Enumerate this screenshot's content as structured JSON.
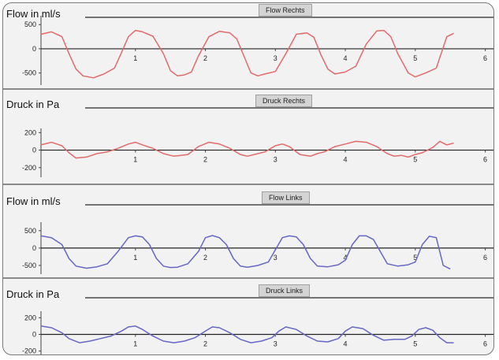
{
  "chart_data": [
    {
      "type": "line",
      "title": "Flow Rechts",
      "ylabel": "Flow in ml/s",
      "x_ticks": [
        "1",
        "2",
        "3",
        "4",
        "5",
        "6"
      ],
      "y_ticks": [
        "500",
        "0",
        "-500"
      ],
      "xlim": [
        -0.35,
        6.05
      ],
      "ylim": [
        -750,
        650
      ],
      "color": "#e26a6a",
      "series": [
        {
          "x": [
            -0.35,
            -0.2,
            -0.05,
            0.05,
            0.15,
            0.25,
            0.4,
            0.55,
            0.7,
            0.8,
            0.9,
            1.0,
            1.1,
            1.25,
            1.4,
            1.5,
            1.6,
            1.7,
            1.8,
            1.9,
            2.05,
            2.2,
            2.35,
            2.45,
            2.55,
            2.65,
            2.75,
            2.85,
            3.0,
            3.15,
            3.3,
            3.45,
            3.55,
            3.65,
            3.75,
            3.85,
            4.0,
            4.15,
            4.3,
            4.45,
            4.55,
            4.65,
            4.75,
            4.9,
            5.0,
            5.15,
            5.3,
            5.45,
            5.55
          ],
          "y": [
            300,
            350,
            250,
            -100,
            -420,
            -560,
            -600,
            -520,
            -400,
            -80,
            250,
            380,
            350,
            260,
            -100,
            -450,
            -560,
            -540,
            -480,
            -150,
            250,
            360,
            330,
            200,
            -150,
            -500,
            -560,
            -520,
            -470,
            -100,
            300,
            330,
            240,
            -120,
            -420,
            -520,
            -480,
            -360,
            100,
            370,
            380,
            250,
            -100,
            -500,
            -580,
            -500,
            -400,
            250,
            320
          ]
        }
      ]
    },
    {
      "type": "line",
      "title": "Druck Rechts",
      "ylabel": "Druck in Pa",
      "x_ticks": [
        "1",
        "2",
        "3",
        "4",
        "5",
        "6"
      ],
      "y_ticks": [
        "200",
        "0",
        "-200"
      ],
      "xlim": [
        -0.35,
        6.05
      ],
      "ylim": [
        -310,
        230
      ],
      "color": "#e26a6a",
      "series": [
        {
          "x": [
            -0.35,
            -0.2,
            -0.05,
            0.05,
            0.15,
            0.3,
            0.45,
            0.6,
            0.75,
            0.9,
            1.0,
            1.1,
            1.25,
            1.4,
            1.55,
            1.65,
            1.75,
            1.9,
            2.05,
            2.2,
            2.35,
            2.5,
            2.6,
            2.7,
            2.85,
            3.0,
            3.1,
            3.2,
            3.35,
            3.5,
            3.6,
            3.7,
            3.85,
            4.0,
            4.15,
            4.3,
            4.45,
            4.6,
            4.7,
            4.8,
            4.9,
            5.0,
            5.1,
            5.25,
            5.35,
            5.45,
            5.55
          ],
          "y": [
            60,
            90,
            50,
            -30,
            -90,
            -80,
            -40,
            -20,
            20,
            70,
            90,
            60,
            20,
            -40,
            -70,
            -60,
            -50,
            40,
            90,
            70,
            20,
            -50,
            -70,
            -50,
            -20,
            50,
            70,
            40,
            -50,
            -70,
            -40,
            -20,
            40,
            70,
            100,
            90,
            40,
            -40,
            -70,
            -60,
            -80,
            -50,
            -30,
            30,
            100,
            60,
            80
          ]
        }
      ]
    },
    {
      "type": "line",
      "title": "Flow Links",
      "ylabel": "Flow in ml/s",
      "x_ticks": [
        "1",
        "2",
        "3",
        "4",
        "5",
        "6"
      ],
      "y_ticks": [
        "500",
        "0",
        "-500"
      ],
      "xlim": [
        -0.35,
        6.05
      ],
      "ylim": [
        -750,
        700
      ],
      "color": "#6666c6",
      "series": [
        {
          "x": [
            -0.35,
            -0.2,
            -0.05,
            0.05,
            0.15,
            0.3,
            0.45,
            0.6,
            0.75,
            0.9,
            1.0,
            1.1,
            1.2,
            1.3,
            1.4,
            1.5,
            1.6,
            1.75,
            1.9,
            2.0,
            2.1,
            2.2,
            2.3,
            2.4,
            2.5,
            2.6,
            2.75,
            2.9,
            3.0,
            3.1,
            3.2,
            3.3,
            3.4,
            3.5,
            3.6,
            3.75,
            3.9,
            4.0,
            4.1,
            4.2,
            4.3,
            4.4,
            4.5,
            4.6,
            4.75,
            4.9,
            5.0,
            5.1,
            5.2,
            5.3,
            5.4,
            5.5
          ],
          "y": [
            350,
            300,
            100,
            -300,
            -520,
            -580,
            -540,
            -450,
            -100,
            300,
            350,
            320,
            100,
            -300,
            -520,
            -560,
            -550,
            -450,
            -100,
            300,
            360,
            300,
            100,
            -300,
            -520,
            -550,
            -500,
            -400,
            -50,
            300,
            350,
            320,
            100,
            -300,
            -520,
            -540,
            -480,
            -350,
            100,
            350,
            350,
            250,
            -100,
            -450,
            -520,
            -480,
            -400,
            100,
            340,
            300,
            -500,
            -600
          ]
        }
      ]
    },
    {
      "type": "line",
      "title": "Druck Links",
      "ylabel": "Druck in Pa",
      "x_ticks": [
        "1",
        "2",
        "3",
        "4",
        "5",
        "6"
      ],
      "y_ticks": [
        "200",
        "0",
        "-200"
      ],
      "xlim": [
        -0.35,
        6.05
      ],
      "ylim": [
        -260,
        260
      ],
      "color": "#6666c6",
      "series": [
        {
          "x": [
            -0.35,
            -0.2,
            -0.05,
            0.05,
            0.2,
            0.35,
            0.5,
            0.65,
            0.8,
            0.9,
            1.0,
            1.1,
            1.25,
            1.4,
            1.55,
            1.7,
            1.85,
            2.0,
            2.1,
            2.2,
            2.35,
            2.5,
            2.65,
            2.8,
            2.95,
            3.05,
            3.15,
            3.3,
            3.45,
            3.6,
            3.75,
            3.9,
            4.0,
            4.1,
            4.25,
            4.4,
            4.55,
            4.7,
            4.85,
            4.95,
            5.05,
            5.15,
            5.25,
            5.35,
            5.45,
            5.55
          ],
          "y": [
            100,
            80,
            20,
            -50,
            -100,
            -80,
            -50,
            -20,
            40,
            90,
            100,
            60,
            -20,
            -80,
            -100,
            -80,
            -40,
            40,
            90,
            80,
            20,
            -60,
            -100,
            -80,
            -40,
            40,
            90,
            60,
            -20,
            -80,
            -90,
            -50,
            40,
            90,
            70,
            -10,
            -70,
            -60,
            -60,
            -20,
            60,
            80,
            50,
            -40,
            -100,
            -100
          ]
        }
      ]
    }
  ]
}
